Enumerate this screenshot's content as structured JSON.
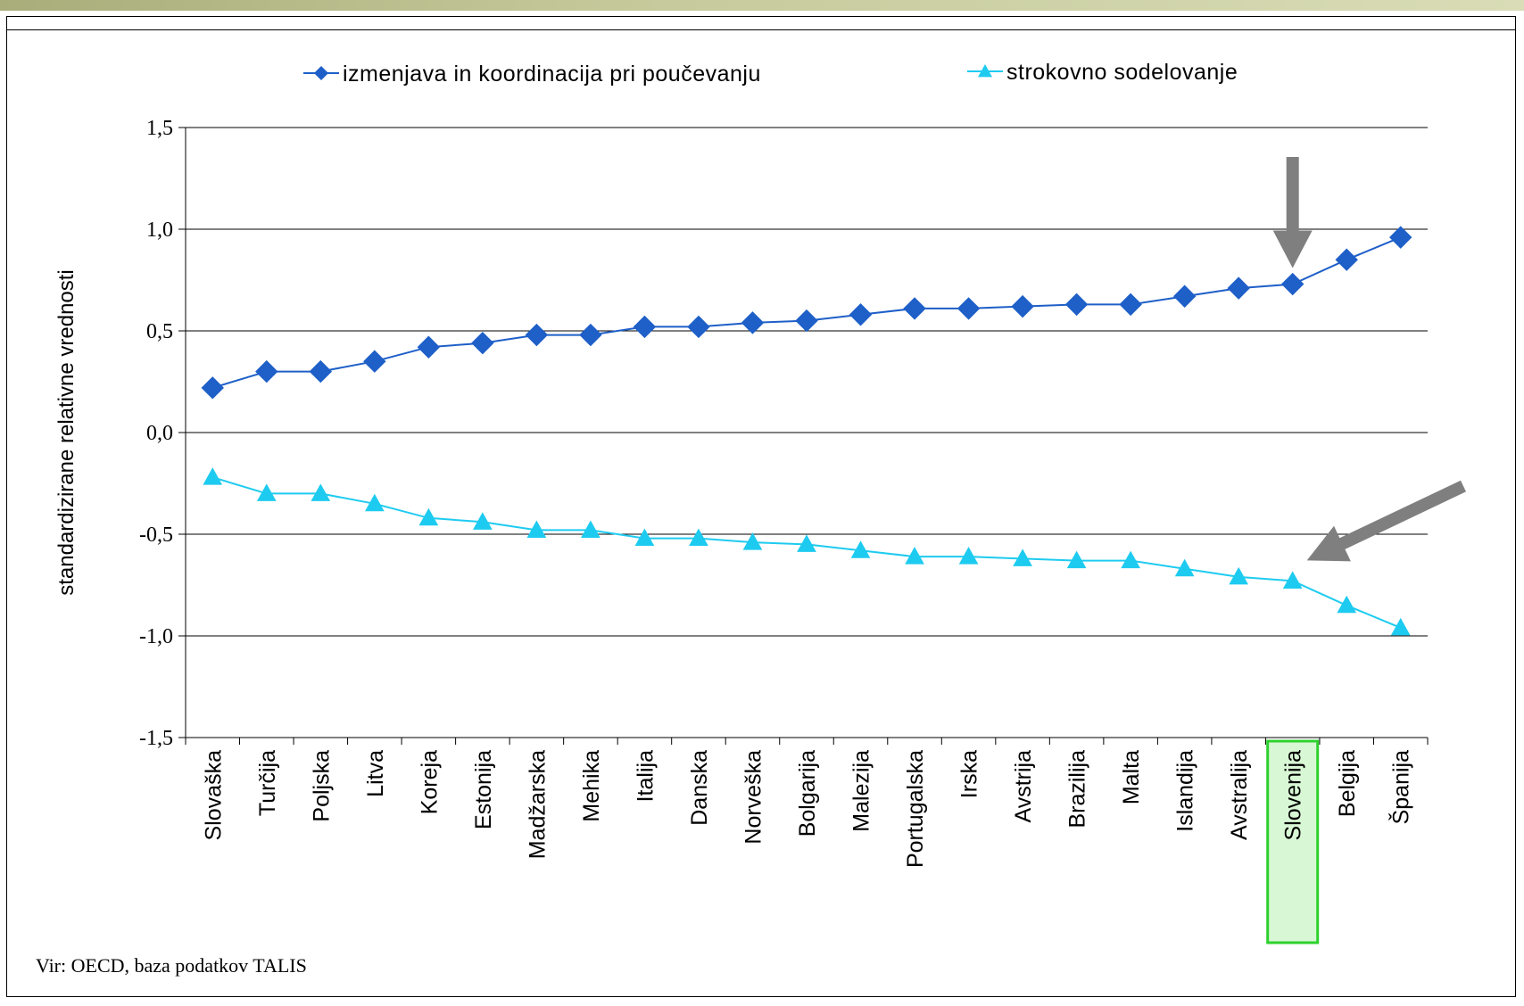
{
  "source_note": "Vir: OECD, baza podatkov TALIS",
  "highlight_category": "Slovenija",
  "colors": {
    "series1": "#1e5fc8",
    "series2": "#1ecbf0",
    "grid": "#000000",
    "arrow": "#7f7f7f",
    "highlight_border": "#2ed12e",
    "highlight_fill": "#b8f0b0"
  },
  "chart_data": {
    "type": "line",
    "title": "",
    "xlabel": "",
    "ylabel": "standardizirane relativne vrednosti",
    "ylim": [
      -1.5,
      1.5
    ],
    "yticks": [
      1.5,
      1.0,
      0.5,
      0.0,
      -0.5,
      -1.0,
      -1.5
    ],
    "ytick_labels": [
      "1,5",
      "1,0",
      "0,5",
      "0,0",
      "-0,5",
      "-1,0",
      "-1,5"
    ],
    "grid": true,
    "legend_position": "top",
    "categories": [
      "Slovaška",
      "Turčija",
      "Poljska",
      "Litva",
      "Koreja",
      "Estonija",
      "Madžarska",
      "Mehika",
      "Italija",
      "Danska",
      "Norveška",
      "Bolgarija",
      "Malezija",
      "Portugalska",
      "Irska",
      "Avstrija",
      "Brazilija",
      "Malta",
      "Islandija",
      "Avstralija",
      "Slovenija",
      "Belgija",
      "Španija"
    ],
    "series": [
      {
        "name": "izmenjava in koordinacija pri poučevanju",
        "marker": "diamond",
        "values": [
          0.22,
          0.3,
          0.3,
          0.35,
          0.42,
          0.44,
          0.48,
          0.48,
          0.52,
          0.52,
          0.54,
          0.55,
          0.58,
          0.61,
          0.61,
          0.62,
          0.63,
          0.63,
          0.67,
          0.71,
          0.73,
          0.85,
          0.96
        ]
      },
      {
        "name": "strokovno sodelovanje",
        "marker": "triangle",
        "values": [
          -0.22,
          -0.3,
          -0.3,
          -0.35,
          -0.42,
          -0.44,
          -0.48,
          -0.48,
          -0.52,
          -0.52,
          -0.54,
          -0.55,
          -0.58,
          -0.61,
          -0.61,
          -0.62,
          -0.63,
          -0.63,
          -0.67,
          -0.71,
          -0.73,
          -0.85,
          -0.96
        ]
      }
    ]
  }
}
